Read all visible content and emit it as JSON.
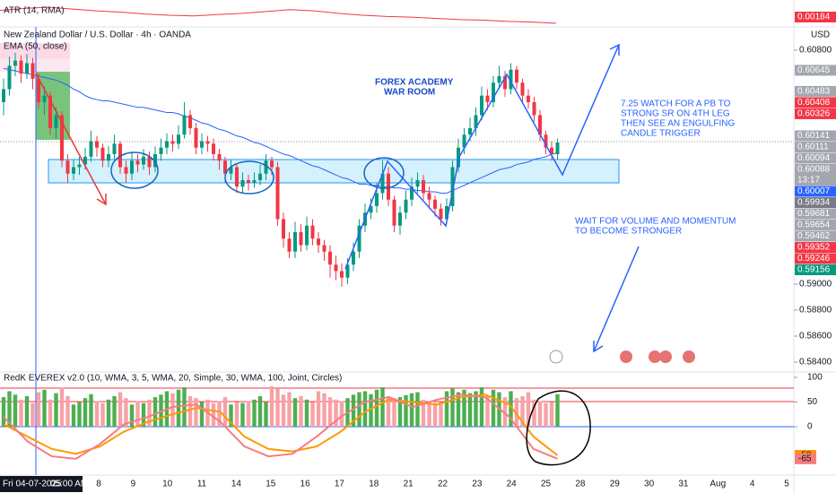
{
  "header": {
    "atr_label": "ATR (14, RMA)",
    "symbol": "New Zealand Dollar / U.S. Dollar · 4h · OANDA",
    "ema_label": "EMA (50, close)",
    "currency": "USD"
  },
  "annotations": {
    "title": [
      "FOREX ACADEMY",
      "WAR ROOM"
    ],
    "plan": [
      "7.25 WATCH FOR A PB TO",
      "STRONG SR ON 4TH LEG",
      "THEN SEE AN ENGULFING",
      "CANDLE TRIGGER"
    ],
    "wait": [
      "WAIT FOR VOLUME AND MOMENTUM",
      "TO BECOME STRONGER"
    ]
  },
  "time_axis": {
    "cursor": "Fri 04-07-2025",
    "cursor_time": "05:00 AM",
    "labels": [
      "8",
      "9",
      "10",
      "11",
      "14",
      "15",
      "16",
      "17",
      "18",
      "21",
      "22",
      "23",
      "24",
      "25",
      "28",
      "29",
      "30",
      "31",
      "Aug",
      "4",
      "5"
    ]
  },
  "chart_data": [
    {
      "type": "candlestick",
      "colors": {
        "up": "#089981",
        "down": "#f23645",
        "ema": "#2962ff"
      },
      "ylim": [
        0.58324,
        0.60979
      ],
      "yticks": [
        {
          "value": 0.608,
          "label": "0.60800"
        },
        {
          "value": 0.59,
          "label": "0.59000"
        },
        {
          "value": 0.588,
          "label": "0.58800"
        },
        {
          "value": 0.586,
          "label": "0.58600"
        },
        {
          "value": 0.584,
          "label": "0.58400"
        }
      ],
      "countdown": "13:17",
      "price_badges": [
        {
          "value": 0.60645,
          "color": "#a3a6af"
        },
        {
          "value": 0.60483,
          "color": "#a3a6af"
        },
        {
          "value": 0.60408,
          "color": "#f23645"
        },
        {
          "value": 0.60326,
          "color": "#f23645"
        },
        {
          "value": 0.60141,
          "color": "#a3a6af"
        },
        {
          "value": 0.60111,
          "color": "#a3a6af"
        },
        {
          "value": 0.60094,
          "color": "#a3a6af"
        },
        {
          "value": 0.60088,
          "color": "#a3a6af"
        },
        {
          "value": 0.60007,
          "color": "#2962ff"
        },
        {
          "value": 0.59934,
          "color": "#787b86"
        },
        {
          "value": 0.59681,
          "color": "#a3a6af"
        },
        {
          "value": 0.59654,
          "color": "#a3a6af"
        },
        {
          "value": 0.59462,
          "color": "#a3a6af"
        },
        {
          "value": 0.59352,
          "color": "#f23645"
        },
        {
          "value": 0.59246,
          "color": "#f23645"
        },
        {
          "value": 0.59156,
          "color": "#089981"
        }
      ],
      "candles": [
        [
          0.604,
          0.6058,
          0.603,
          0.605
        ],
        [
          0.605,
          0.6075,
          0.6045,
          0.6068
        ],
        [
          0.6068,
          0.6078,
          0.606,
          0.6072
        ],
        [
          0.6072,
          0.6076,
          0.6055,
          0.6062
        ],
        [
          0.6062,
          0.6077,
          0.6058,
          0.607
        ],
        [
          0.607,
          0.6074,
          0.605,
          0.6058
        ],
        [
          0.6058,
          0.6062,
          0.6035,
          0.604
        ],
        [
          0.604,
          0.6052,
          0.603,
          0.6045
        ],
        [
          0.6045,
          0.6048,
          0.6015,
          0.602
        ],
        [
          0.602,
          0.6036,
          0.6012,
          0.603
        ],
        [
          0.603,
          0.6033,
          0.599,
          0.5995
        ],
        [
          0.5995,
          0.6,
          0.5978,
          0.5985
        ],
        [
          0.5985,
          0.5996,
          0.598,
          0.599
        ],
        [
          0.599,
          0.5998,
          0.5984,
          0.5992
        ],
        [
          0.5992,
          0.6005,
          0.5988,
          0.5998
        ],
        [
          0.5998,
          0.6018,
          0.5994,
          0.601
        ],
        [
          0.601,
          0.6014,
          0.5998,
          0.6005
        ],
        [
          0.6005,
          0.6008,
          0.599,
          0.5995
        ],
        [
          0.5995,
          0.6006,
          0.599,
          0.6
        ],
        [
          0.6,
          0.6015,
          0.5996,
          0.6008
        ],
        [
          0.6008,
          0.601,
          0.5985,
          0.599
        ],
        [
          0.599,
          0.5995,
          0.5978,
          0.5985
        ],
        [
          0.5985,
          0.6002,
          0.598,
          0.5995
        ],
        [
          0.5995,
          0.6,
          0.5986,
          0.5992
        ],
        [
          0.5992,
          0.6004,
          0.5988,
          0.5998
        ],
        [
          0.5998,
          0.6002,
          0.5984,
          0.599
        ],
        [
          0.599,
          0.6006,
          0.5986,
          0.6
        ],
        [
          0.6,
          0.6012,
          0.5995,
          0.6005
        ],
        [
          0.6005,
          0.6016,
          0.6,
          0.601
        ],
        [
          0.601,
          0.6015,
          0.6002,
          0.6008
        ],
        [
          0.6008,
          0.6022,
          0.6004,
          0.6015
        ],
        [
          0.6015,
          0.604,
          0.6012,
          0.603
        ],
        [
          0.603,
          0.6034,
          0.6015,
          0.602
        ],
        [
          0.602,
          0.6024,
          0.6,
          0.6005
        ],
        [
          0.6005,
          0.6016,
          0.6,
          0.601
        ],
        [
          0.601,
          0.6014,
          0.6002,
          0.6008
        ],
        [
          0.6008,
          0.6012,
          0.5995,
          0.6
        ],
        [
          0.6,
          0.6004,
          0.5988,
          0.5995
        ],
        [
          0.5995,
          0.5998,
          0.5978,
          0.5985
        ],
        [
          0.5985,
          0.5996,
          0.598,
          0.599
        ],
        [
          0.599,
          0.5992,
          0.597,
          0.5975
        ],
        [
          0.5975,
          0.5986,
          0.597,
          0.598
        ],
        [
          0.598,
          0.5984,
          0.5972,
          0.5978
        ],
        [
          0.5978,
          0.5986,
          0.5974,
          0.598
        ],
        [
          0.598,
          0.5992,
          0.5976,
          0.5985
        ],
        [
          0.5985,
          0.6,
          0.598,
          0.5995
        ],
        [
          0.5995,
          0.5998,
          0.5984,
          0.599
        ],
        [
          0.599,
          0.5994,
          0.5945,
          0.595
        ],
        [
          0.595,
          0.5955,
          0.5928,
          0.5935
        ],
        [
          0.5935,
          0.594,
          0.592,
          0.5925
        ],
        [
          0.5925,
          0.5948,
          0.592,
          0.594
        ],
        [
          0.594,
          0.5946,
          0.5925,
          0.593
        ],
        [
          0.593,
          0.5952,
          0.5926,
          0.5945
        ],
        [
          0.5945,
          0.595,
          0.593,
          0.5935
        ],
        [
          0.5935,
          0.594,
          0.5924,
          0.593
        ],
        [
          0.593,
          0.5934,
          0.5918,
          0.5925
        ],
        [
          0.5925,
          0.593,
          0.5905,
          0.5915
        ],
        [
          0.5915,
          0.5922,
          0.5903,
          0.591
        ],
        [
          0.591,
          0.5916,
          0.5898,
          0.5905
        ],
        [
          0.5905,
          0.592,
          0.59,
          0.5915
        ],
        [
          0.5915,
          0.5932,
          0.591,
          0.5925
        ],
        [
          0.5925,
          0.595,
          0.592,
          0.5945
        ],
        [
          0.5945,
          0.5962,
          0.594,
          0.5955
        ],
        [
          0.5955,
          0.5966,
          0.595,
          0.596
        ],
        [
          0.596,
          0.5978,
          0.5955,
          0.597
        ],
        [
          0.597,
          0.5995,
          0.5965,
          0.5985
        ],
        [
          0.5985,
          0.599,
          0.596,
          0.5965
        ],
        [
          0.5965,
          0.5968,
          0.594,
          0.5945
        ],
        [
          0.5945,
          0.596,
          0.5938,
          0.5955
        ],
        [
          0.5955,
          0.5972,
          0.595,
          0.5965
        ],
        [
          0.5965,
          0.5982,
          0.596,
          0.5975
        ],
        [
          0.5975,
          0.5986,
          0.597,
          0.598
        ],
        [
          0.598,
          0.5984,
          0.5965,
          0.597
        ],
        [
          0.597,
          0.5975,
          0.5958,
          0.5965
        ],
        [
          0.5965,
          0.5968,
          0.5952,
          0.5958
        ],
        [
          0.5958,
          0.5962,
          0.5945,
          0.595
        ],
        [
          0.595,
          0.5966,
          0.5946,
          0.596
        ],
        [
          0.596,
          0.5995,
          0.5956,
          0.599
        ],
        [
          0.599,
          0.6012,
          0.5986,
          0.6005
        ],
        [
          0.6005,
          0.602,
          0.6,
          0.6015
        ],
        [
          0.6015,
          0.6028,
          0.601,
          0.602
        ],
        [
          0.602,
          0.6036,
          0.6014,
          0.603
        ],
        [
          0.603,
          0.6052,
          0.6026,
          0.6045
        ],
        [
          0.6045,
          0.605,
          0.6034,
          0.604
        ],
        [
          0.604,
          0.606,
          0.6036,
          0.6055
        ],
        [
          0.6055,
          0.6068,
          0.605,
          0.606
        ],
        [
          0.606,
          0.6064,
          0.6044,
          0.605
        ],
        [
          0.605,
          0.607,
          0.6046,
          0.6065
        ],
        [
          0.6065,
          0.6068,
          0.605,
          0.6055
        ],
        [
          0.6055,
          0.6058,
          0.604,
          0.6045
        ],
        [
          0.6045,
          0.605,
          0.6035,
          0.604
        ],
        [
          0.604,
          0.6044,
          0.6025,
          0.603
        ],
        [
          0.603,
          0.6034,
          0.601,
          0.6015
        ],
        [
          0.6015,
          0.6018,
          0.6,
          0.6005
        ],
        [
          0.6005,
          0.601,
          0.5995,
          0.6
        ],
        [
          0.6,
          0.6012,
          0.5996,
          0.6009
        ]
      ],
      "ema": [
        0.6066,
        0.6065,
        0.6064,
        0.6063,
        0.6062,
        0.6061,
        0.606,
        0.6059,
        0.6058,
        0.6057,
        0.6055,
        0.6053,
        0.605,
        0.6048,
        0.6045,
        0.6043,
        0.6042,
        0.6041,
        0.6041,
        0.604,
        0.6039,
        0.6038,
        0.6037,
        0.6036,
        0.6036,
        0.6035,
        0.6034,
        0.6033,
        0.6032,
        0.6032,
        0.6031,
        0.6029,
        0.6028,
        0.6026,
        0.6024,
        0.6023,
        0.6021,
        0.6019,
        0.6018,
        0.6016,
        0.6014,
        0.6013,
        0.6011,
        0.6009,
        0.6008,
        0.6006,
        0.6004,
        0.6002,
        0.6,
        0.5999,
        0.5997,
        0.5995,
        0.5993,
        0.5991,
        0.599,
        0.5988,
        0.5986,
        0.5984,
        0.5982,
        0.5981,
        0.5979,
        0.5977,
        0.5977,
        0.5976,
        0.5976,
        0.5975,
        0.5975,
        0.5974,
        0.5974,
        0.5973,
        0.5973,
        0.5972,
        0.5972,
        0.5971,
        0.5971,
        0.597,
        0.597,
        0.5972,
        0.5974,
        0.5976,
        0.5978,
        0.598,
        0.5982,
        0.5984,
        0.5986,
        0.5988,
        0.5989,
        0.599,
        0.5992,
        0.5993,
        0.5994,
        0.5996,
        0.5997,
        0.5998,
        0.6,
        0.6001
      ]
    },
    {
      "type": "line",
      "color": "#f23645",
      "values": [
        0.00205,
        0.00208,
        0.0021,
        0.00207,
        0.00204,
        0.00202,
        0.00199,
        0.00197,
        0.00196,
        0.00198,
        0.002,
        0.00203,
        0.00206,
        0.00204,
        0.002,
        0.00197,
        0.00195,
        0.00194,
        0.00192,
        0.0019,
        0.00189,
        0.00187,
        0.00186,
        0.00184
      ]
    },
    {
      "type": "oscillator",
      "title": "RedK EVEREX v2.0 (10, WMA, 3, 5, WMA, 20, Simple, 30, WMA, 100, Joint, Circles)",
      "ylim": [
        -98,
        111
      ],
      "yticks": [
        100,
        50,
        0
      ],
      "colors": {
        "up": "#4caf50",
        "down": "#f7a1a6"
      },
      "histogram": [
        60,
        72,
        65,
        55,
        62,
        48,
        70,
        75,
        55,
        68,
        80,
        62,
        45,
        50,
        58,
        66,
        52,
        48,
        55,
        62,
        70,
        58,
        45,
        52,
        48,
        55,
        60,
        65,
        72,
        68,
        75,
        80,
        62,
        58,
        50,
        55,
        48,
        52,
        60,
        45,
        50,
        48,
        52,
        55,
        62,
        50,
        82,
        78,
        65,
        70,
        58,
        62,
        55,
        50,
        72,
        68,
        60,
        55,
        52,
        58,
        65,
        70,
        72,
        66,
        75,
        80,
        62,
        58,
        60,
        64,
        68,
        70,
        55,
        52,
        48,
        50,
        72,
        78,
        70,
        75,
        68,
        72,
        80,
        62,
        75,
        70,
        60,
        72,
        58,
        62,
        70,
        55,
        52,
        48,
        50,
        66
      ],
      "series": [
        {
          "color": "#ff9800",
          "values": [
            5,
            -20,
            -45,
            -55,
            -40,
            -10,
            10,
            25,
            38,
            30,
            -20,
            -45,
            -50,
            -40,
            -10,
            30,
            55,
            50,
            45,
            60,
            65,
            45,
            -20,
            -58
          ]
        },
        {
          "color": "#f77c80",
          "values": [
            20,
            -30,
            -60,
            -65,
            -35,
            5,
            20,
            40,
            45,
            10,
            -40,
            -60,
            -55,
            -20,
            20,
            50,
            60,
            40,
            55,
            65,
            60,
            20,
            -45,
            -65
          ]
        }
      ]
    }
  ]
}
